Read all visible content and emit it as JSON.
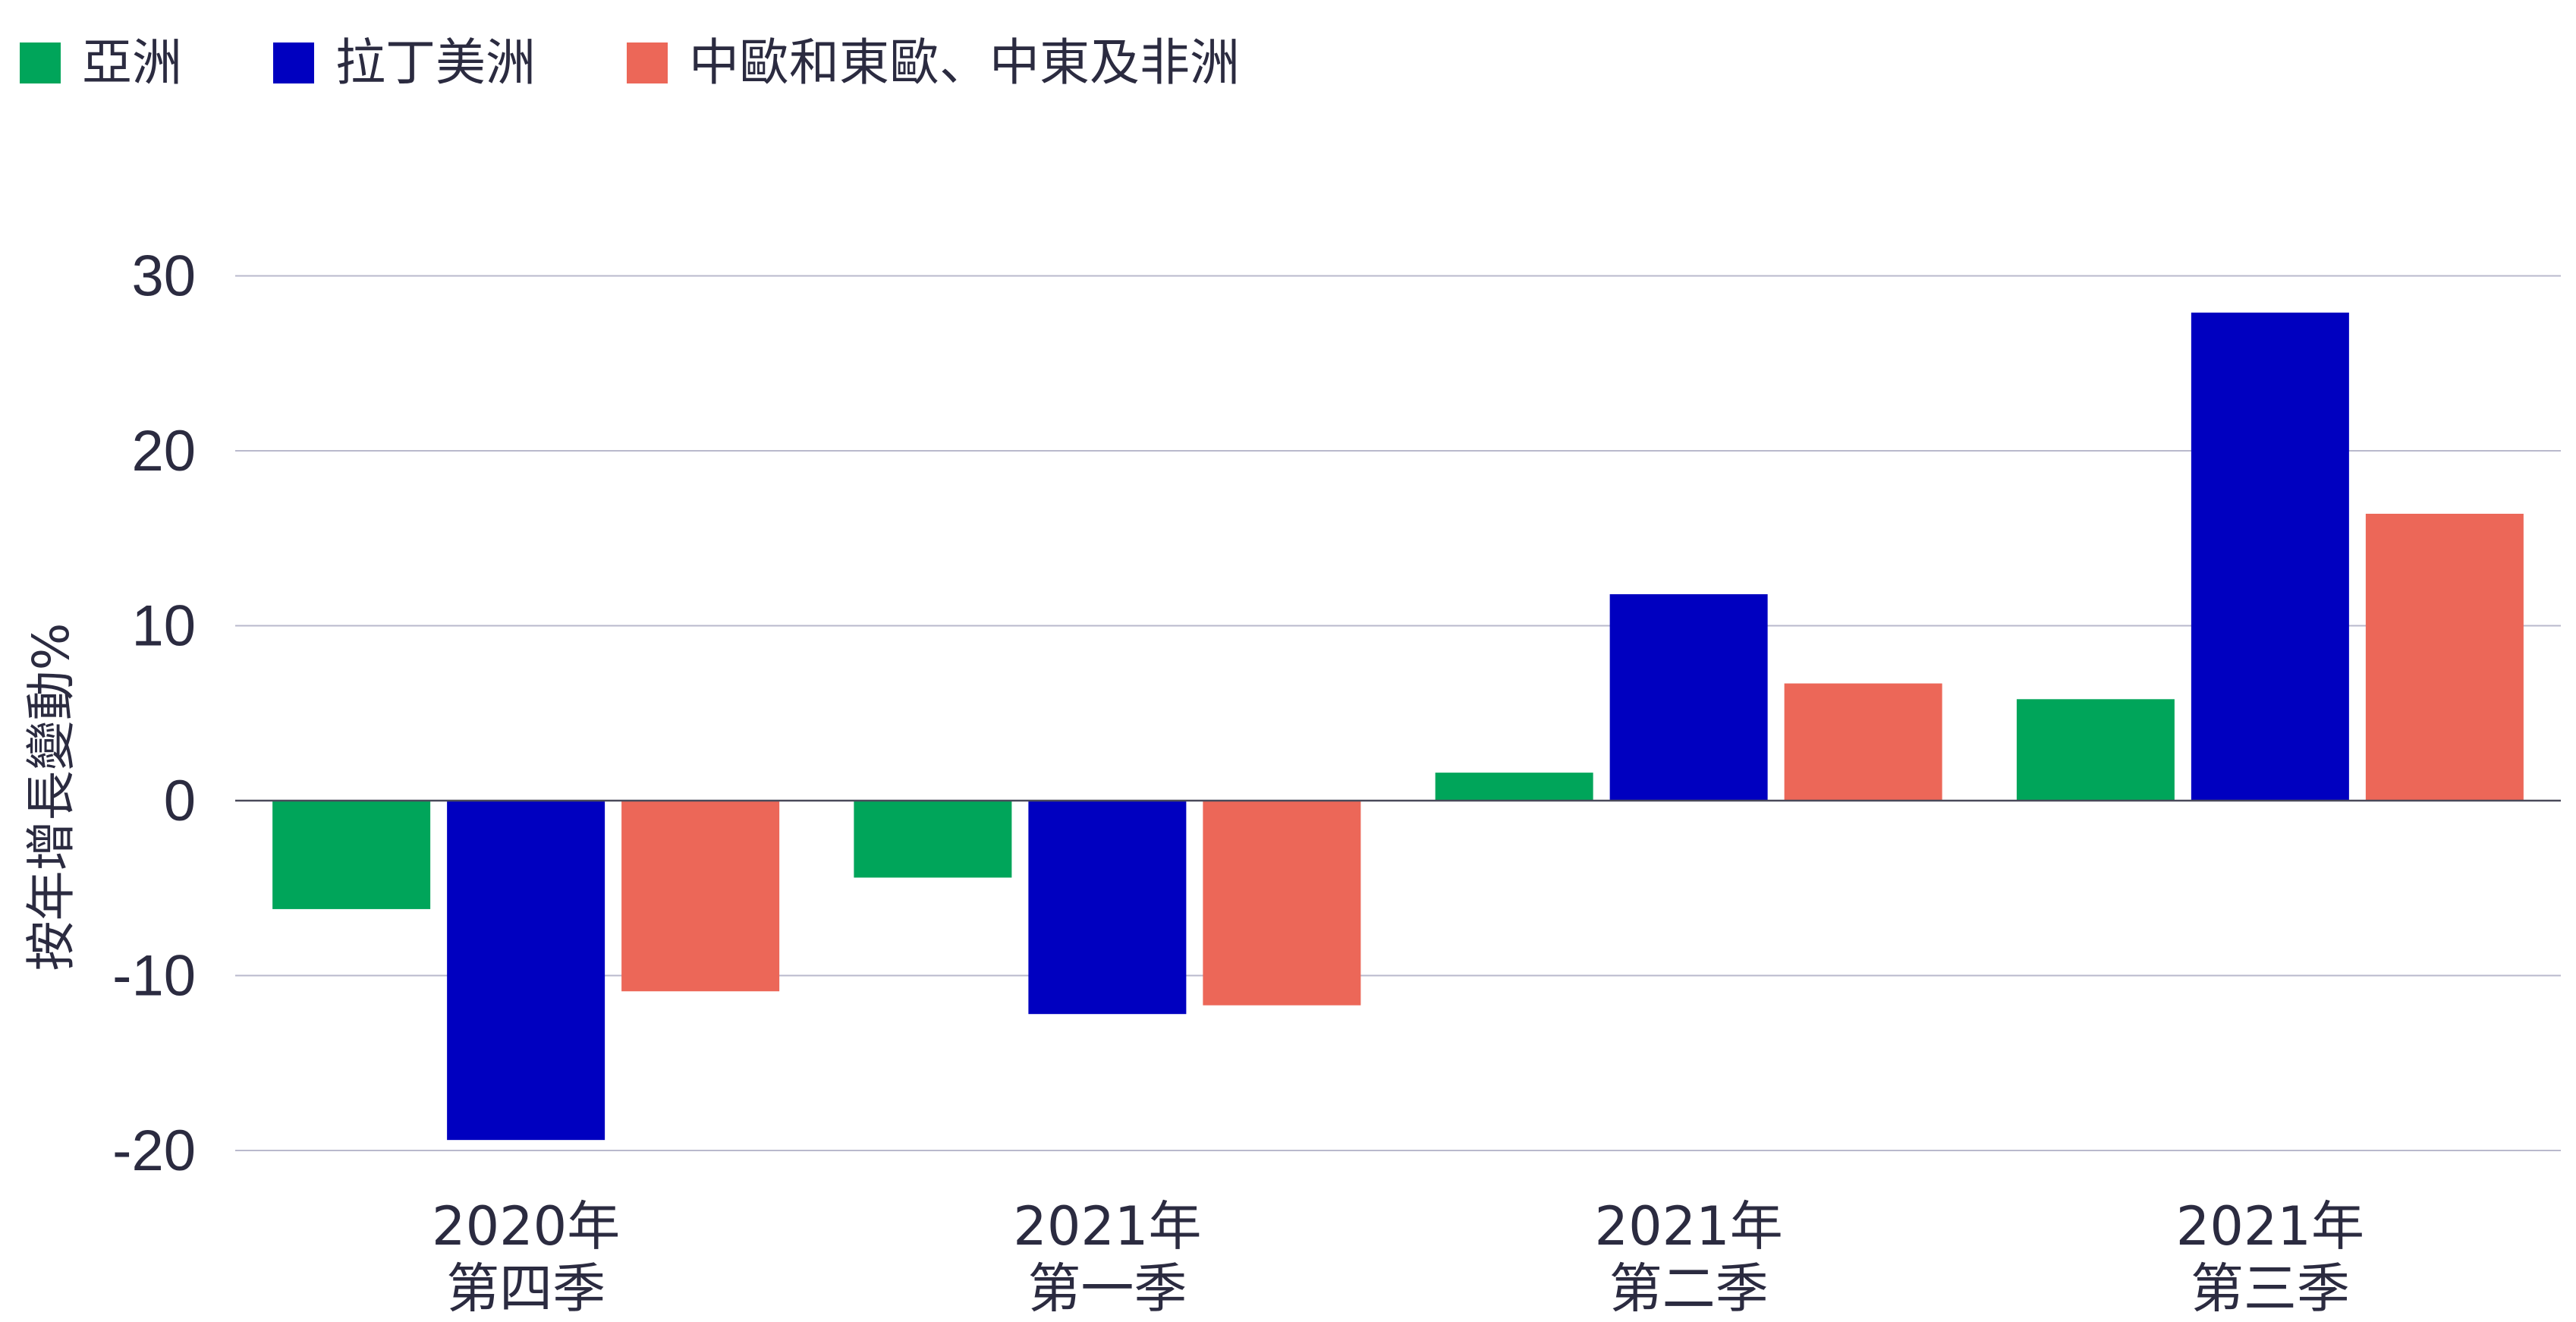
{
  "chart_data": {
    "type": "bar",
    "ylabel": "按年增長變動%",
    "categories": [
      [
        "2020年",
        "第四季"
      ],
      [
        "2021年",
        "第一季"
      ],
      [
        "2021年",
        "第二季"
      ],
      [
        "2021年",
        "第三季"
      ]
    ],
    "series": [
      {
        "name": "亞洲",
        "color": "#00a55a",
        "values": [
          -6.2,
          -4.4,
          1.6,
          5.8
        ]
      },
      {
        "name": "拉丁美洲",
        "color": "#0000c0",
        "values": [
          -19.4,
          -12.2,
          11.8,
          27.9
        ]
      },
      {
        "name": "中歐和東歐、中東及非洲",
        "color": "#ec6758",
        "values": [
          -10.9,
          -11.7,
          6.7,
          16.4
        ]
      }
    ],
    "ylim": [
      -20,
      30
    ],
    "yticks": [
      30,
      20,
      10,
      0,
      -10,
      -20
    ],
    "grid": true,
    "legend": "top-left"
  }
}
